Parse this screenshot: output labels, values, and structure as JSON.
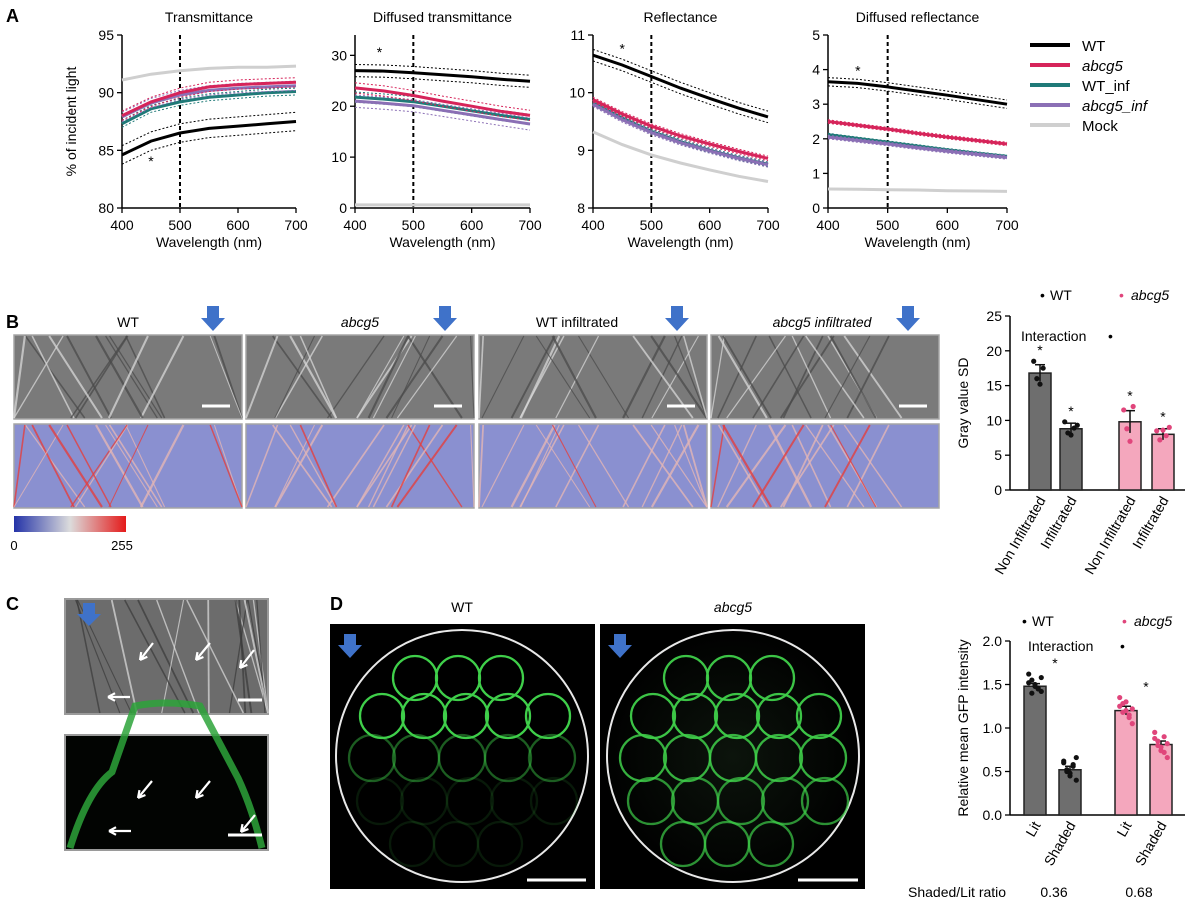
{
  "panel_labels": [
    "A",
    "B",
    "C",
    "D"
  ],
  "legend": [
    {
      "label": "WT",
      "color": "#000000",
      "italic": false
    },
    {
      "label": "abcg5",
      "color": "#d6245a",
      "italic": true
    },
    {
      "label": "WT_inf",
      "color": "#1f7a78",
      "italic": false
    },
    {
      "label": "abcg5_inf",
      "color": "#8b6fb5",
      "italic": true
    },
    {
      "label": "Mock",
      "color": "#cfcfcf",
      "italic": false
    }
  ],
  "colorbar": {
    "min": "0",
    "max": "255",
    "colors": [
      "#2433a8",
      "#dcdcdc",
      "#e41a1a"
    ]
  },
  "image_labels": {
    "B": [
      "WT",
      "abcg5",
      "WT infiltrated",
      "abcg5 infiltrated"
    ],
    "D": [
      "WT",
      "abcg5"
    ]
  },
  "ratio_row": {
    "label": "Shaded/Lit ratio",
    "values": [
      "0.36",
      "0.68"
    ]
  },
  "chart_data": [
    {
      "type": "line",
      "title": "Transmittance",
      "xlabel": "Wavelength (nm)",
      "ylabel": "% of incident light",
      "xlim": [
        400,
        700
      ],
      "ylim": [
        80,
        95
      ],
      "xticks": [
        400,
        500,
        600,
        700
      ],
      "yticks": [
        80,
        85,
        90,
        95
      ],
      "vline": 500,
      "x": [
        400,
        450,
        500,
        550,
        600,
        650,
        700
      ],
      "series": [
        {
          "name": "WT",
          "values": [
            84.6,
            85.8,
            86.5,
            86.9,
            87.1,
            87.3,
            87.5
          ],
          "band": 0.8
        },
        {
          "name": "abcg5",
          "values": [
            88.0,
            89.2,
            90.0,
            90.5,
            90.7,
            90.8,
            90.9
          ],
          "band": 0.4
        },
        {
          "name": "WT_inf",
          "values": [
            87.3,
            88.6,
            89.2,
            89.6,
            89.8,
            90.0,
            90.1
          ],
          "band": 0.3
        },
        {
          "name": "abcg5_inf",
          "values": [
            87.9,
            89.1,
            89.8,
            90.2,
            90.4,
            90.5,
            90.6
          ],
          "band": 0.4
        },
        {
          "name": "Mock",
          "values": [
            91.1,
            91.6,
            91.9,
            92.1,
            92.2,
            92.2,
            92.3
          ],
          "band": 0
        }
      ],
      "annotations": [
        {
          "text": "*",
          "x": 450,
          "y": 84.0
        }
      ]
    },
    {
      "type": "line",
      "title": "Diffused transmittance",
      "xlabel": "Wavelength (nm)",
      "ylabel": "",
      "xlim": [
        400,
        700
      ],
      "ylim": [
        0,
        34
      ],
      "xticks": [
        400,
        500,
        600,
        700
      ],
      "yticks": [
        0,
        10,
        20,
        30
      ],
      "vline": 500,
      "x": [
        400,
        450,
        500,
        550,
        600,
        650,
        700
      ],
      "series": [
        {
          "name": "WT",
          "values": [
            27.0,
            26.9,
            26.6,
            26.2,
            25.8,
            25.3,
            24.9
          ],
          "band": 1.2
        },
        {
          "name": "abcg5",
          "values": [
            23.6,
            23.0,
            22.1,
            21.0,
            20.0,
            19.0,
            18.2
          ],
          "band": 1.0
        },
        {
          "name": "WT_inf",
          "values": [
            21.8,
            21.4,
            20.9,
            20.0,
            19.1,
            18.2,
            17.4
          ],
          "band": 1.0
        },
        {
          "name": "abcg5_inf",
          "values": [
            21.0,
            20.6,
            20.1,
            19.2,
            18.3,
            17.4,
            16.5
          ],
          "band": 1.2
        },
        {
          "name": "Mock",
          "values": [
            0.6,
            0.6,
            0.6,
            0.6,
            0.6,
            0.6,
            0.6
          ],
          "band": 0
        }
      ],
      "annotations": [
        {
          "text": "*",
          "x": 442,
          "y": 30.5
        }
      ]
    },
    {
      "type": "line",
      "title": "Reflectance",
      "xlabel": "Wavelength (nm)",
      "ylabel": "",
      "xlim": [
        400,
        700
      ],
      "ylim": [
        8,
        11
      ],
      "xticks": [
        400,
        500,
        600,
        700
      ],
      "yticks": [
        8,
        9,
        10,
        11
      ],
      "vline": 500,
      "x": [
        400,
        450,
        500,
        550,
        600,
        650,
        700
      ],
      "series": [
        {
          "name": "WT",
          "values": [
            10.65,
            10.48,
            10.28,
            10.08,
            9.9,
            9.73,
            9.58
          ],
          "band": 0.1
        },
        {
          "name": "abcg5",
          "values": [
            9.88,
            9.63,
            9.42,
            9.25,
            9.11,
            8.98,
            8.86
          ],
          "band": 0.04
        },
        {
          "name": "WT_inf",
          "values": [
            9.82,
            9.56,
            9.33,
            9.15,
            9.0,
            8.87,
            8.76
          ],
          "band": 0.04
        },
        {
          "name": "abcg5_inf",
          "values": [
            9.8,
            9.53,
            9.31,
            9.13,
            8.99,
            8.86,
            8.75
          ],
          "band": 0.04
        },
        {
          "name": "Mock",
          "values": [
            9.32,
            9.1,
            8.92,
            8.78,
            8.66,
            8.55,
            8.46
          ],
          "band": 0
        }
      ],
      "annotations": [
        {
          "text": "*",
          "x": 450,
          "y": 10.75
        }
      ]
    },
    {
      "type": "line",
      "title": "Diffused reflectance",
      "xlabel": "Wavelength (nm)",
      "ylabel": "",
      "xlim": [
        400,
        700
      ],
      "ylim": [
        0,
        5
      ],
      "xticks": [
        400,
        500,
        600,
        700
      ],
      "yticks": [
        0,
        1,
        2,
        3,
        4,
        5
      ],
      "vline": 500,
      "x": [
        400,
        450,
        500,
        550,
        600,
        650,
        700
      ],
      "series": [
        {
          "name": "WT",
          "values": [
            3.65,
            3.6,
            3.5,
            3.38,
            3.26,
            3.13,
            3.0
          ],
          "band": 0.12
        },
        {
          "name": "abcg5",
          "values": [
            2.5,
            2.39,
            2.28,
            2.16,
            2.05,
            1.95,
            1.85
          ],
          "band": 0.05
        },
        {
          "name": "WT_inf",
          "values": [
            2.12,
            2.01,
            1.9,
            1.79,
            1.68,
            1.58,
            1.49
          ],
          "band": 0.04
        },
        {
          "name": "abcg5_inf",
          "values": [
            2.05,
            1.95,
            1.85,
            1.74,
            1.64,
            1.55,
            1.46
          ],
          "band": 0.05
        },
        {
          "name": "Mock",
          "values": [
            0.55,
            0.54,
            0.53,
            0.52,
            0.5,
            0.49,
            0.48
          ],
          "band": 0
        }
      ],
      "annotations": [
        {
          "text": "*",
          "x": 450,
          "y": 3.95
        }
      ]
    },
    {
      "type": "bar",
      "title": "",
      "ylabel": "Gray value SD",
      "ylim": [
        0,
        25
      ],
      "yticks": [
        0,
        5,
        10,
        15,
        20,
        25
      ],
      "categories": [
        "Non Infiltrated",
        "Infiltrated",
        "Non Infiltrated",
        "Infiltrated"
      ],
      "values": [
        16.8,
        8.8,
        9.8,
        8.0
      ],
      "errors": [
        1.2,
        0.8,
        1.6,
        0.8
      ],
      "groups": [
        "WT",
        "WT",
        "abcg5",
        "abcg5"
      ],
      "points": [
        [
          18.5,
          16.0,
          15.2,
          17.5
        ],
        [
          9.8,
          8.2,
          7.9,
          8.9,
          9.3
        ],
        [
          11.5,
          8.8,
          7.0,
          12.0
        ],
        [
          8.5,
          7.2,
          8.6,
          7.8,
          9.0
        ]
      ],
      "legend": [
        {
          "label": "WT",
          "marker": "•",
          "color": "#000000",
          "italic": false
        },
        {
          "label": "abcg5",
          "marker": "•",
          "color": "#e0457b",
          "italic": true
        }
      ],
      "annotations": [
        {
          "text": "Interaction",
          "after": "•"
        },
        {
          "text": "*",
          "bar": 0
        },
        {
          "text": "*",
          "bar": 1
        },
        {
          "text": "*",
          "bar": 2
        },
        {
          "text": "*",
          "bar": 3
        }
      ]
    },
    {
      "type": "bar",
      "title": "",
      "ylabel": "Relative mean GFP intensity",
      "ylim": [
        0,
        2.0
      ],
      "yticks": [
        0.0,
        0.5,
        1.0,
        1.5,
        2.0
      ],
      "categories": [
        "Lit",
        "Shaded",
        "Lit",
        "Shaded"
      ],
      "values": [
        1.48,
        0.52,
        1.2,
        0.81
      ],
      "errors": [
        0.03,
        0.04,
        0.05,
        0.04
      ],
      "groups": [
        "WT",
        "WT",
        "abcg5",
        "abcg5"
      ],
      "points": [
        [
          1.62,
          1.55,
          1.5,
          1.46,
          1.42,
          1.52,
          1.4,
          1.48,
          1.45,
          1.58
        ],
        [
          0.6,
          0.5,
          0.45,
          0.56,
          0.4,
          0.62,
          0.52,
          0.48,
          0.58,
          0.66
        ],
        [
          1.35,
          1.28,
          1.2,
          1.12,
          1.05,
          1.25,
          1.18,
          1.3,
          1.15,
          1.22
        ],
        [
          0.95,
          0.85,
          0.78,
          0.72,
          0.66,
          0.88,
          0.8,
          0.74,
          0.9,
          0.82
        ]
      ],
      "legend": [
        {
          "label": "WT",
          "marker": "•",
          "color": "#000000",
          "italic": false
        },
        {
          "label": "abcg5",
          "marker": "•",
          "color": "#e0457b",
          "italic": true
        }
      ],
      "annotations": [
        {
          "text": "Interaction",
          "after": "•"
        },
        {
          "text": "*",
          "bar": 0
        },
        {
          "text": "*",
          "bar": 2
        }
      ]
    }
  ]
}
